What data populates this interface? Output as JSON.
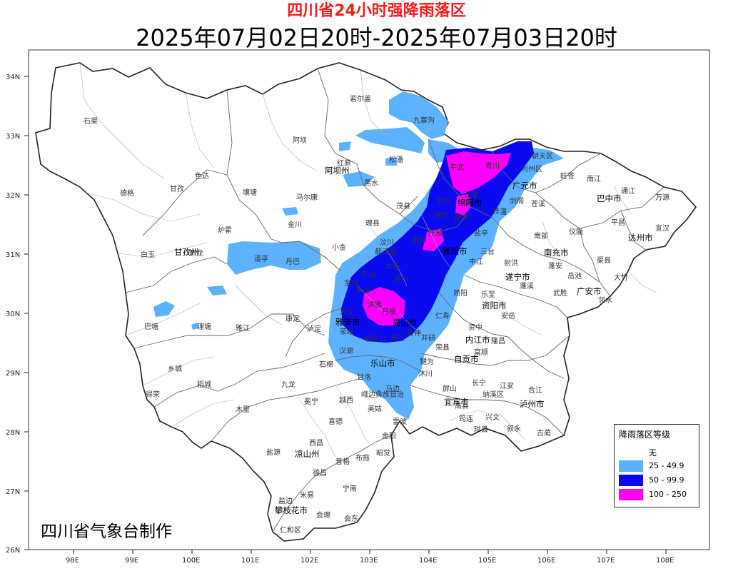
{
  "title": "四川省24小时强降雨落区",
  "subtitle": "2025年07月02日20时-2025年07月03日20时",
  "credit": "四川省气象台制作",
  "legend": {
    "title": "降雨落区等级",
    "items": [
      {
        "label": "无",
        "color": "#ffffff"
      },
      {
        "label": "25 - 49.9",
        "color": "#5cb2ff"
      },
      {
        "label": "50 - 99.9",
        "color": "#0a0af0"
      },
      {
        "label": "100 - 250",
        "color": "#ff00ff"
      }
    ]
  },
  "axes": {
    "lat_ticks": [
      "34N",
      "33N",
      "32N",
      "31N",
      "30N",
      "29N",
      "28N",
      "27N",
      "26N"
    ],
    "lon_ticks": [
      "98E",
      "99E",
      "100E",
      "101E",
      "102E",
      "103E",
      "104E",
      "105E",
      "106E",
      "107E",
      "108E"
    ]
  },
  "cities": [
    "阿坝州",
    "甘孜州",
    "广元市",
    "巴中市",
    "达州市",
    "绵阳市",
    "南充市",
    "遂宁市",
    "广安市",
    "德阳市",
    "资阳市",
    "内江市",
    "自贡市",
    "雅安市",
    "乐山市",
    "眉山市",
    "宜宾市",
    "泸州市",
    "凉山州",
    "攀枝花市"
  ],
  "counties": [
    "若尔盖",
    "九寨沟",
    "石渠",
    "阿坝",
    "红原",
    "松潘",
    "青川",
    "朝天区",
    "利州区",
    "旺苍",
    "南江",
    "通江",
    "万源",
    "德格",
    "色达",
    "甘孜",
    "壤塘",
    "马尔康",
    "黑水",
    "茂县",
    "苍溪",
    "平昌",
    "宣汉",
    "白玉",
    "炉霍",
    "新龙",
    "道孚",
    "丹巴",
    "金川",
    "小金",
    "理县",
    "汶川",
    "南部",
    "仪陇",
    "渠县",
    "大竹",
    "邻水",
    "巴塘",
    "理塘",
    "雅江",
    "康定",
    "泸定",
    "天全",
    "荥经",
    "汉源",
    "石棉",
    "射洪",
    "蓬溪",
    "蓬安",
    "岳池",
    "武胜",
    "简阳",
    "乐至",
    "安岳",
    "资中",
    "隆昌",
    "荣县",
    "富顺",
    "乡城",
    "稻城",
    "得荣",
    "九龙",
    "冕宁",
    "越西",
    "甘洛",
    "美姑",
    "雷波",
    "马边",
    "沐川",
    "屏山",
    "长宁",
    "江安",
    "纳溪区",
    "叙永",
    "古蔺",
    "木里",
    "盐源",
    "西昌",
    "昭觉",
    "喜德",
    "布拖",
    "金阳",
    "德昌",
    "普格",
    "宁南",
    "会东",
    "会理",
    "米易",
    "盐边",
    "仁和区",
    "筠连",
    "珙县",
    "高县",
    "兴文",
    "合江",
    "仁寿",
    "井研",
    "犍为",
    "峨边彝族自治",
    "青神",
    "洪雅",
    "丹棱",
    "夹江",
    "峨眉山",
    "名山",
    "芦山",
    "宝兴",
    "大邑",
    "崇州",
    "彭州",
    "都江堰",
    "什邡",
    "绵竹",
    "安州",
    "江油",
    "北川",
    "平武",
    "梓潼",
    "剑阁",
    "盐亭",
    "三台",
    "中江"
  ]
}
